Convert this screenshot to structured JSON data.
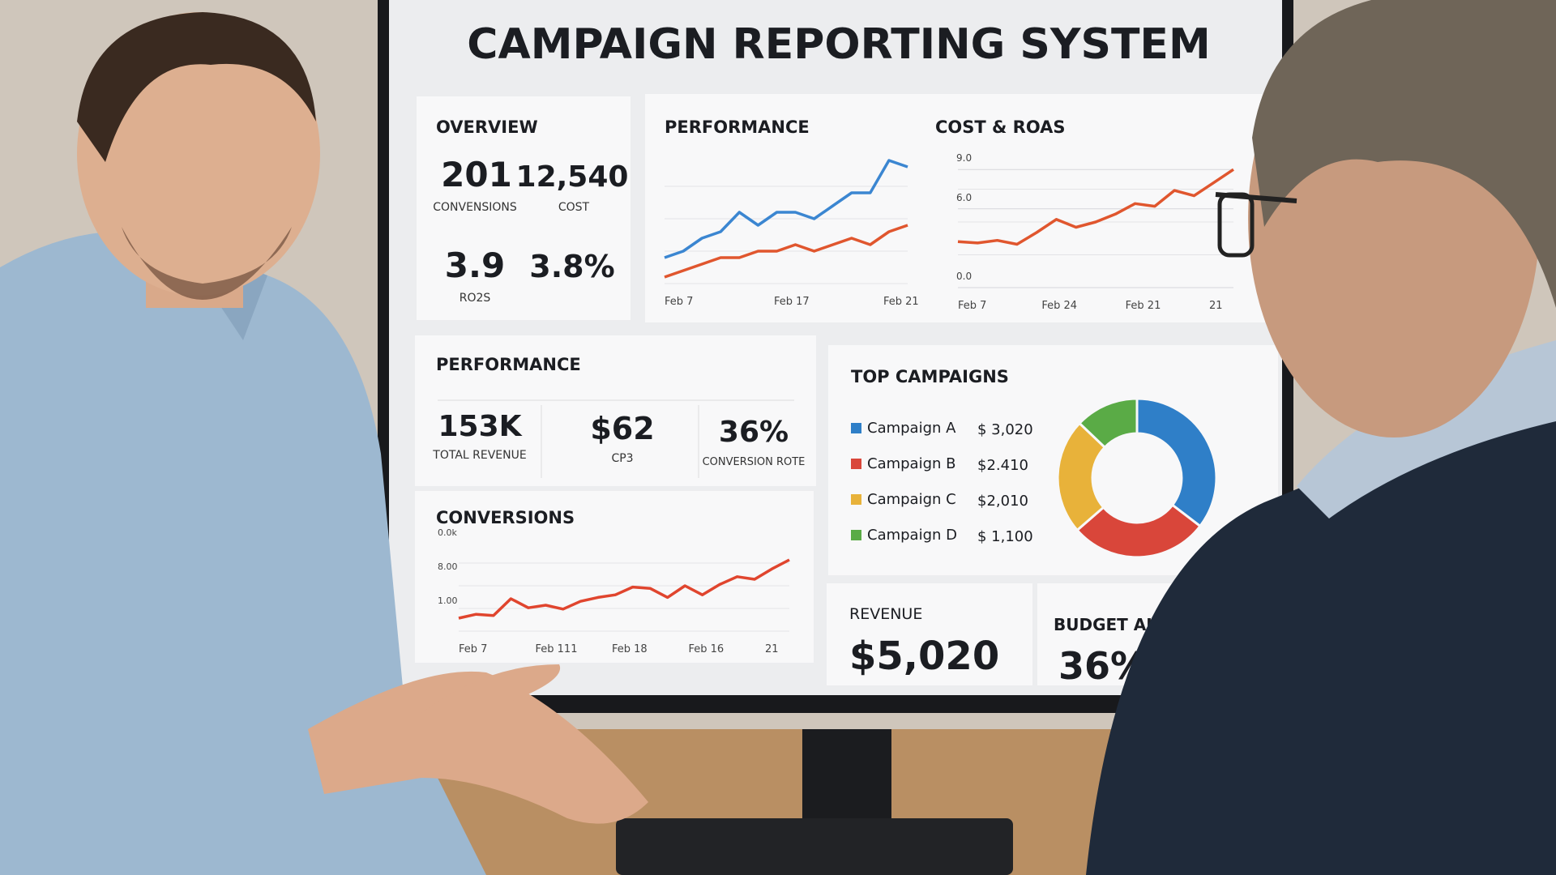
{
  "title": "CAMPAIGN REPORTING SYSTEM",
  "overview": {
    "title": "OVERVIEW",
    "kpis": [
      {
        "value": "201",
        "label": "CONVENSIONS"
      },
      {
        "value": "12,540",
        "label": "COST"
      },
      {
        "value": "3.9",
        "label": "RO2S"
      },
      {
        "value": "3.8%"
      }
    ]
  },
  "performance_chart": {
    "type": "line",
    "title": "PERFORMANCE",
    "x_labels": [
      "Feb 7",
      "Feb 17",
      "Feb 21"
    ],
    "ylim": [
      0,
      20
    ],
    "series": [
      {
        "color": "#3b86d1",
        "values": [
          4,
          5,
          7,
          8,
          11,
          9,
          11,
          11,
          10,
          12,
          14,
          14,
          19,
          18
        ]
      },
      {
        "color": "#e0562e",
        "values": [
          1,
          2,
          3,
          4,
          4,
          5,
          5,
          6,
          5,
          6,
          7,
          6,
          8,
          9
        ]
      }
    ]
  },
  "cost_roas_chart": {
    "type": "line",
    "title": "COST & ROAS",
    "x_labels": [
      "Feb 7",
      "Feb 24",
      "Feb 21",
      "21"
    ],
    "ylim": [
      0,
      10
    ],
    "yticks": [
      {
        "value": 0,
        "label": "0.0"
      },
      {
        "value": 6,
        "label": "6.0"
      },
      {
        "value": 9,
        "label": "9.0"
      }
    ],
    "series": [
      {
        "color": "#e0562e",
        "values": [
          3.5,
          3.4,
          3.6,
          3.3,
          4.2,
          5.2,
          4.6,
          5.0,
          5.6,
          6.4,
          6.2,
          7.4,
          7.0,
          8.0,
          9.0
        ]
      }
    ]
  },
  "performance": {
    "title": "PERFORMANCE",
    "kpis": [
      {
        "value": "153K",
        "label": "TOTAL REVENUE"
      },
      {
        "value": "$62",
        "label": "CP3"
      },
      {
        "value": "36%",
        "label": "CONVERSION ROTE"
      }
    ]
  },
  "conversions_chart": {
    "type": "line",
    "title": "CONVERSIONS",
    "y_labels": [
      "0.0k",
      "8.00",
      "1.00"
    ],
    "x_labels": [
      "Feb 7",
      "Feb 111",
      "Feb 18",
      "Feb 16",
      "21"
    ],
    "ylim": [
      0,
      7
    ],
    "series": [
      {
        "color": "#e0452e",
        "values": [
          1,
          1.3,
          1.2,
          2.5,
          1.8,
          2,
          1.7,
          2.3,
          2.6,
          2.8,
          3.4,
          3.3,
          2.6,
          3.5,
          2.8,
          3.6,
          4.2,
          4,
          4.8,
          5.5
        ]
      }
    ]
  },
  "top_campaigns": {
    "type": "pie",
    "title": "TOP CAMPAIGNS",
    "categories": [
      "Campaign A",
      "Campaign B",
      "Campaign C",
      "Campaign D"
    ],
    "values": [
      3020,
      2410,
      2010,
      1100
    ],
    "value_labels": [
      "$ 3,020",
      "$2.410",
      "$2,010",
      "$ 1,100"
    ],
    "colors": [
      "#2f7fc8",
      "#d9463a",
      "#e8b23a",
      "#5aab46"
    ]
  },
  "revenue": {
    "title": "REVENUE",
    "value": "$5,020"
  },
  "budget": {
    "title": "BUDGET AL",
    "value": "36%"
  }
}
